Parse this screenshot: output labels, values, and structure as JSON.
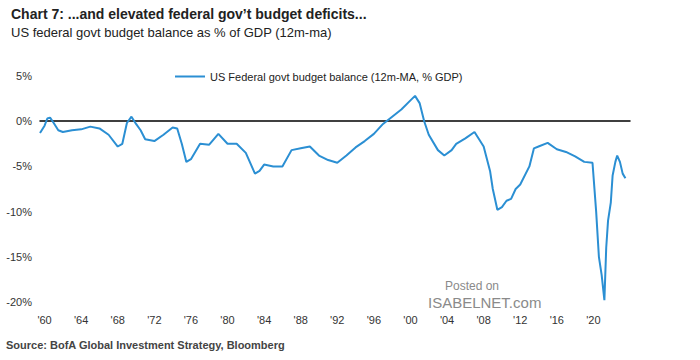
{
  "chart_data": {
    "type": "line",
    "title": "Chart 7: ...and elevated federal gov’t budget deficits...",
    "subtitle": "US federal govt budget balance as % of GDP (12m-ma)",
    "source": "Source: BofA Global Investment Strategy, Bloomberg",
    "annotations": [
      "Posted on",
      "ISABELNET.com"
    ],
    "x": [
      1959.5,
      1960.0,
      1960.3,
      1960.6,
      1961.0,
      1961.5,
      1962.0,
      1963.0,
      1964.0,
      1965.0,
      1966.0,
      1967.0,
      1968.0,
      1968.5,
      1969.0,
      1969.5,
      1970.0,
      1970.5,
      1971.0,
      1972.0,
      1973.0,
      1974.0,
      1974.5,
      1975.0,
      1975.5,
      1976.0,
      1977.0,
      1978.0,
      1979.0,
      1980.0,
      1981.0,
      1982.0,
      1983.0,
      1983.5,
      1984.0,
      1985.0,
      1986.0,
      1987.0,
      1988.0,
      1989.0,
      1990.0,
      1991.0,
      1992.0,
      1993.0,
      1994.0,
      1995.0,
      1996.0,
      1997.0,
      1998.0,
      1999.0,
      2000.0,
      2000.5,
      2001.0,
      2001.5,
      2002.0,
      2003.0,
      2003.7,
      2004.5,
      2005.0,
      2006.0,
      2007.0,
      2008.0,
      2008.7,
      2009.0,
      2009.5,
      2010.0,
      2010.5,
      2011.0,
      2011.5,
      2012.0,
      2013.0,
      2013.5,
      2014.0,
      2015.0,
      2016.0,
      2017.0,
      2018.0,
      2019.0,
      2019.9,
      2020.3,
      2020.6,
      2020.9,
      2021.2,
      2021.4,
      2021.6,
      2021.9,
      2022.1,
      2022.4,
      2022.6,
      2022.9,
      2023.2,
      2023.5
    ],
    "series": [
      {
        "name": "US Federal govt budget balance (12m-MA, % GDP)",
        "color": "#2b8fd3",
        "values": [
          -1.3,
          -0.5,
          0.3,
          0.4,
          -0.2,
          -1.0,
          -1.2,
          -1.0,
          -0.9,
          -0.6,
          -0.8,
          -1.5,
          -2.8,
          -2.5,
          -0.2,
          0.5,
          -0.3,
          -1.0,
          -2.0,
          -2.2,
          -1.5,
          -0.7,
          -0.8,
          -2.5,
          -4.5,
          -4.2,
          -2.5,
          -2.6,
          -1.4,
          -2.5,
          -2.5,
          -3.5,
          -5.8,
          -5.5,
          -4.8,
          -5.0,
          -5.0,
          -3.2,
          -3.0,
          -2.8,
          -3.8,
          -4.3,
          -4.6,
          -3.8,
          -2.9,
          -2.2,
          -1.4,
          -0.3,
          0.5,
          1.3,
          2.3,
          2.8,
          2.0,
          0.0,
          -1.5,
          -3.2,
          -3.8,
          -3.2,
          -2.5,
          -1.9,
          -1.2,
          -2.8,
          -5.5,
          -7.5,
          -9.8,
          -9.5,
          -8.8,
          -8.6,
          -7.5,
          -7.0,
          -5.0,
          -3.0,
          -2.8,
          -2.4,
          -3.1,
          -3.4,
          -3.9,
          -4.5,
          -4.6,
          -10.0,
          -15.0,
          -17.0,
          -19.8,
          -14.0,
          -11.0,
          -9.0,
          -6.0,
          -4.5,
          -3.8,
          -4.5,
          -5.8,
          -6.3
        ]
      }
    ],
    "xlim": [
      1959.5,
      2024
    ],
    "xticks": [
      {
        "value": 1960,
        "label": "'60"
      },
      {
        "value": 1964,
        "label": "'64"
      },
      {
        "value": 1968,
        "label": "'68"
      },
      {
        "value": 1972,
        "label": "'72"
      },
      {
        "value": 1976,
        "label": "'76"
      },
      {
        "value": 1980,
        "label": "'80"
      },
      {
        "value": 1984,
        "label": "'84"
      },
      {
        "value": 1988,
        "label": "'88"
      },
      {
        "value": 1992,
        "label": "'92"
      },
      {
        "value": 1996,
        "label": "'96"
      },
      {
        "value": 2000,
        "label": "'00"
      },
      {
        "value": 2004,
        "label": "'04"
      },
      {
        "value": 2008,
        "label": "'08"
      },
      {
        "value": 2012,
        "label": "'12"
      },
      {
        "value": 2016,
        "label": "'16"
      },
      {
        "value": 2020,
        "label": "'20"
      }
    ],
    "ylim": [
      -20,
      5
    ],
    "yticks": [
      {
        "value": -20,
        "label": "-20%"
      },
      {
        "value": -15,
        "label": "-15%"
      },
      {
        "value": -10,
        "label": "-10%"
      },
      {
        "value": -5,
        "label": "-5%"
      },
      {
        "value": 0,
        "label": "0%"
      },
      {
        "value": 5,
        "label": "5%"
      }
    ],
    "grid": false,
    "legend": "top-left"
  }
}
